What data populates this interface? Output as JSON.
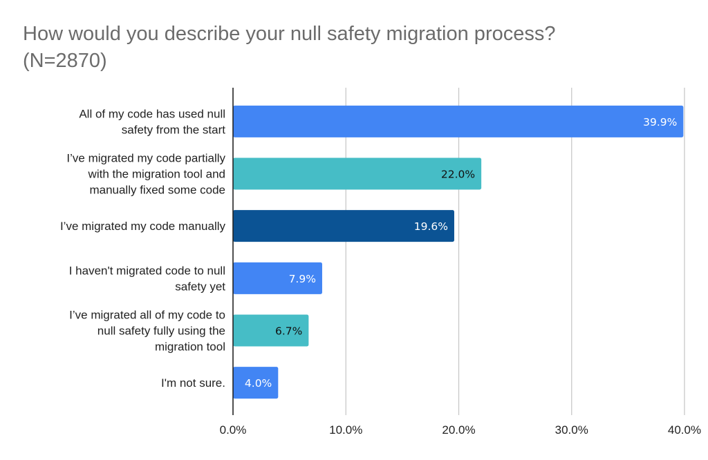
{
  "chart_data": {
    "type": "bar",
    "orientation": "horizontal",
    "title": "How would you describe your null safety migration process? (N=2870)",
    "title_lines": [
      "How would you describe your null safety migration process?",
      "(N=2870)"
    ],
    "xlabel": "",
    "ylabel": "",
    "xlim": [
      0,
      40
    ],
    "grid": true,
    "legend": "none",
    "x_ticks": [
      0,
      10,
      20,
      30,
      40
    ],
    "x_tick_labels": [
      "0.0%",
      "10.0%",
      "20.0%",
      "30.0%",
      "40.0%"
    ],
    "categories": [
      "All of my code has used null safety from the start",
      "I’ve migrated my code partially with the migration tool and manually fixed some code",
      "I’ve migrated my code manually",
      "I haven't migrated code to null safety yet",
      "I’ve migrated all of my code to null safety fully using the migration tool",
      "I'm not sure."
    ],
    "category_label_lines": [
      [
        "All of my code has used null",
        "safety from the start"
      ],
      [
        "I’ve migrated my code partially",
        "with the migration tool and",
        "manually fixed some code"
      ],
      [
        "I’ve migrated my code manually"
      ],
      [
        "I haven't migrated code to null",
        "safety yet"
      ],
      [
        "I’ve migrated all of my code to",
        "null safety fully using the",
        "migration tool"
      ],
      [
        "I'm not sure."
      ]
    ],
    "values": [
      39.9,
      22.0,
      19.6,
      7.9,
      6.7,
      4.0
    ],
    "data_labels": [
      "39.9%",
      "22.0%",
      "19.6%",
      "7.9%",
      "6.7%",
      "4.0%"
    ],
    "bar_colors": [
      "#4285f4",
      "#46bdc6",
      "#0b5394",
      "#4285f4",
      "#46bdc6",
      "#4285f4"
    ],
    "label_colors": [
      "#ffffff",
      "#111111",
      "#ffffff",
      "#ffffff",
      "#111111",
      "#ffffff"
    ]
  }
}
